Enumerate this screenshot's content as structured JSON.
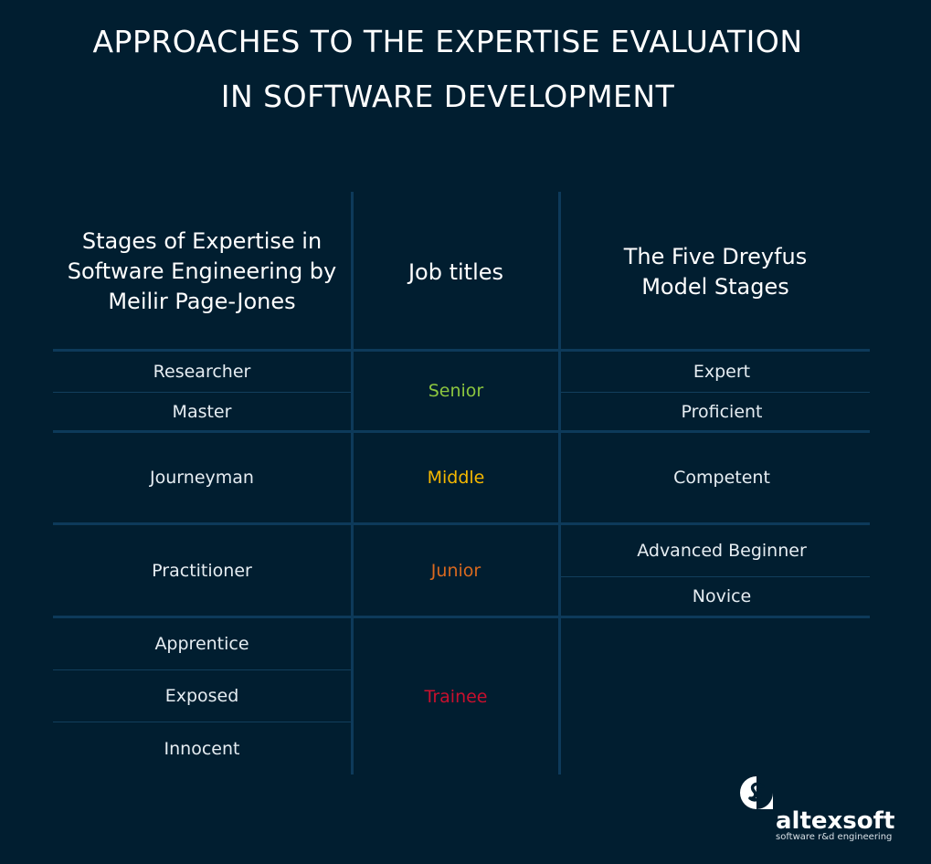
{
  "title": {
    "line1": "APPROACHES TO THE EXPERTISE EVALUATION",
    "line2": "IN SOFTWARE DEVELOPMENT"
  },
  "headers": [
    "Stages of Expertise in Software Engineering by Meilir Page-Jones",
    "Job titles",
    "The Five Dreyfus Model Stages"
  ],
  "page_jones": [
    "Researcher",
    "Master",
    "Journeyman",
    "Practitioner",
    "Apprentice",
    "Exposed",
    "Innocent"
  ],
  "job_titles": [
    {
      "label": "Senior",
      "color": "#8cc63f"
    },
    {
      "label": "Middle",
      "color": "#f5b800"
    },
    {
      "label": "Junior",
      "color": "#d9691f"
    },
    {
      "label": "Trainee",
      "color": "#c8102e"
    }
  ],
  "dreyfus": [
    "Expert",
    "Proficient",
    "Competent",
    "Advanced Beginner",
    "Novice"
  ],
  "logo": {
    "brand": "altexsoft",
    "tagline": "software r&d engineering"
  }
}
